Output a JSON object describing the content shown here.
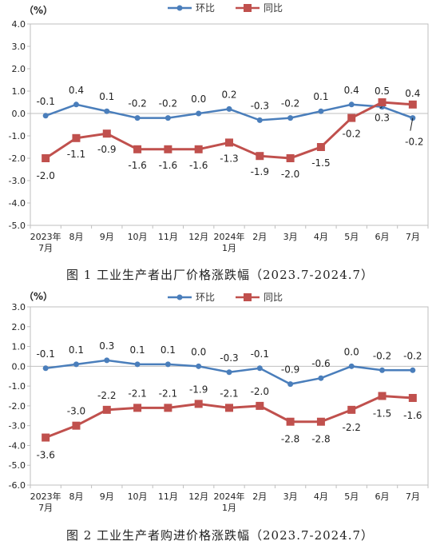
{
  "chart_data": [
    {
      "type": "line",
      "title": "",
      "caption": "图 1    工业生产者出厂价格涨跌幅（2023.7-2024.7）",
      "unit_label": "（%）",
      "categories": [
        "2023年\n7月",
        "8月",
        "9月",
        "10月",
        "11月",
        "12月",
        "2024年\n1月",
        "2月",
        "3月",
        "4月",
        "5月",
        "6月",
        "7月"
      ],
      "series": [
        {
          "name": "环比",
          "color": "#4A7EBB",
          "marker": "circle",
          "values": [
            -0.1,
            0.4,
            0.1,
            -0.2,
            -0.2,
            0.0,
            0.2,
            -0.3,
            -0.2,
            0.1,
            0.4,
            0.3,
            -0.2
          ]
        },
        {
          "name": "同比",
          "color": "#C0504D",
          "marker": "square",
          "values": [
            -2.0,
            -1.1,
            -0.9,
            -1.6,
            -1.6,
            -1.6,
            -1.3,
            -1.9,
            -2.0,
            -1.5,
            -0.2,
            0.5,
            0.4
          ]
        }
      ],
      "ylim": [
        -5.0,
        4.0
      ],
      "yticks": [
        4.0,
        3.0,
        2.0,
        1.0,
        0.0,
        -1.0,
        -2.0,
        -3.0,
        -4.0,
        -5.0
      ],
      "legend": "top-center",
      "grid": false
    },
    {
      "type": "line",
      "title": "",
      "caption": "图 2    工业生产者购进价格涨跌幅（2023.7-2024.7）",
      "unit_label": "（%）",
      "categories": [
        "2023年\n7月",
        "8月",
        "9月",
        "10月",
        "11月",
        "12月",
        "2024年\n1月",
        "2月",
        "3月",
        "4月",
        "5月",
        "6月",
        "7月"
      ],
      "series": [
        {
          "name": "环比",
          "color": "#4A7EBB",
          "marker": "circle",
          "values": [
            -0.1,
            0.1,
            0.3,
            0.1,
            0.1,
            0.0,
            -0.3,
            -0.1,
            -0.9,
            -0.6,
            0.0,
            -0.2,
            -0.2
          ]
        },
        {
          "name": "同比",
          "color": "#C0504D",
          "marker": "square",
          "values": [
            -3.6,
            -3.0,
            -2.2,
            -2.1,
            -2.1,
            -1.9,
            -2.1,
            -2.0,
            -2.8,
            -2.8,
            -2.2,
            -1.5,
            -1.6
          ]
        }
      ],
      "ylim": [
        -6.0,
        3.0
      ],
      "yticks": [
        3.0,
        2.0,
        1.0,
        0.0,
        -1.0,
        -2.0,
        -3.0,
        -4.0,
        -5.0,
        -6.0
      ],
      "legend": "top-center",
      "grid": false
    }
  ]
}
